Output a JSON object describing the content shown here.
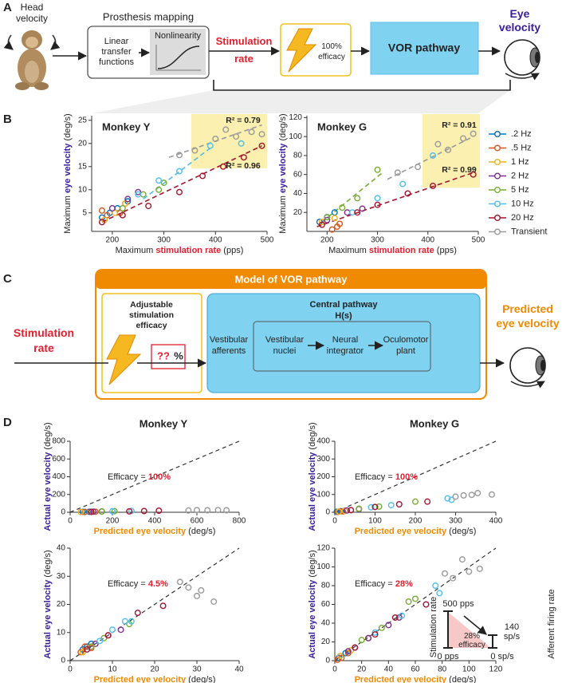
{
  "panel_labels": {
    "a": "A",
    "b": "B",
    "c": "C",
    "d": "D"
  },
  "panel_a": {
    "head_velocity": [
      "Head",
      "velocity"
    ],
    "prosthesis_mapping": "Prosthesis mapping",
    "linear": [
      "Linear",
      "transfer",
      "functions"
    ],
    "nonlinearity": "Nonlinearity",
    "stimulation_rate": [
      "Stimulation",
      "rate"
    ],
    "efficacy": [
      "100%",
      "efficacy"
    ],
    "vor_pathway": "VOR pathway",
    "eye_velocity": [
      "Eye",
      "velocity"
    ]
  },
  "panel_c": {
    "title": "Model of VOR pathway",
    "adjustable": [
      "Adjustable",
      "stimulation",
      "efficacy"
    ],
    "unknown": "??",
    "percent": "%",
    "central": [
      "Central pathway",
      "H(s)"
    ],
    "afferents": [
      "Vestibular",
      "afferents"
    ],
    "nuclei": [
      "Vestibular",
      "nuclei"
    ],
    "integrator": [
      "Neural",
      "integrator"
    ],
    "plant": [
      "Oculomotor",
      "plant"
    ],
    "stimulation_rate": [
      "Stimulation",
      "rate"
    ],
    "predicted": [
      "Predicted",
      "eye velocity"
    ]
  },
  "panel_d": {
    "inset": {
      "top_left": "500 pps",
      "bottom_left": "0 pps",
      "top_right": [
        "140",
        "sp/s"
      ],
      "bottom_right": "0 sp/s",
      "efficacy": [
        "28%",
        "efficacy"
      ],
      "left_axis": "Stimulation rate",
      "right_axis": "Afferent firing rate"
    }
  },
  "chart_data": [
    {
      "type": "scatter",
      "title": "Monkey Y",
      "xlabel": [
        "Maximum ",
        "stimulation rate",
        " (pps)"
      ],
      "xlabel_color": "#e0202e",
      "ylabel": [
        "Maximum ",
        "eye velocity",
        " (deg/s)"
      ],
      "ylabel_color": "#3a1d9a",
      "xlim": [
        160,
        500
      ],
      "xticks": [
        200,
        300,
        400,
        500
      ],
      "ylim": [
        1,
        26
      ],
      "yticks": [
        5,
        10,
        15,
        20,
        25
      ],
      "series": [
        {
          "color": "#0072bd",
          "x": [
            180,
            195,
            210,
            230
          ],
          "values": [
            4,
            5,
            6,
            7.5
          ]
        },
        {
          "color": "#d95319",
          "x": [
            180,
            190,
            215,
            225
          ],
          "values": [
            5.5,
            4.5,
            5,
            7
          ]
        },
        {
          "color": "#edb120",
          "x": [
            185,
            205,
            225
          ],
          "values": [
            3.5,
            5,
            7
          ]
        },
        {
          "color": "#7e2f8e",
          "x": [
            200,
            230,
            250
          ],
          "values": [
            6,
            8,
            9.5
          ]
        },
        {
          "color": "#77ac30",
          "x": [
            220,
            260,
            290,
            300
          ],
          "values": [
            6,
            9,
            10,
            11.5
          ]
        },
        {
          "color": "#4dbeee",
          "x": [
            250,
            290,
            330,
            390,
            450
          ],
          "values": [
            9,
            12,
            14,
            19.5,
            20
          ]
        },
        {
          "color": "#a2142f",
          "x": [
            180,
            220,
            270,
            330,
            375,
            415,
            455,
            490
          ],
          "values": [
            3,
            4.5,
            6.5,
            9.5,
            13,
            15,
            17,
            19.5
          ]
        },
        {
          "color": "#999999",
          "x": [
            330,
            360,
            400,
            420,
            440,
            470,
            490
          ],
          "values": [
            17.5,
            18.5,
            21,
            23,
            21.5,
            22.5,
            22
          ]
        }
      ],
      "fits": [
        {
          "color": "#999999",
          "x": [
            310,
            490
          ],
          "values": [
            17,
            24
          ]
        },
        {
          "color": "#4dbeee",
          "x": [
            260,
            390
          ],
          "values": [
            8,
            19
          ]
        },
        {
          "color": "#a2142f",
          "x": [
            180,
            490
          ],
          "values": [
            3,
            19.5
          ]
        }
      ],
      "annotations": [
        "R² = 0.79",
        "R² = 0.96"
      ]
    },
    {
      "type": "scatter",
      "title": "Monkey G",
      "xlabel": [
        "Maximum ",
        "stimulation rate",
        " (pps)"
      ],
      "xlabel_color": "#e0202e",
      "ylabel": [
        "Maximum ",
        "eye velocity",
        " (deg/s)"
      ],
      "ylabel_color": "#3a1d9a",
      "xlim": [
        160,
        500
      ],
      "xticks": [
        200,
        300,
        400,
        500
      ],
      "ylim": [
        0,
        122
      ],
      "yticks": [
        20,
        40,
        60,
        80,
        100,
        120
      ],
      "legend": "right",
      "series": [
        {
          "name": ".2 Hz",
          "color": "#0072bd",
          "x": [
            185,
            200,
            215
          ],
          "values": [
            10,
            15,
            20
          ]
        },
        {
          "name": ".5 Hz",
          "color": "#d95319",
          "x": [
            210,
            220,
            225
          ],
          "values": [
            2,
            5,
            8
          ]
        },
        {
          "name": "1 Hz",
          "color": "#edb120",
          "x": [
            190,
            215
          ],
          "values": [
            10,
            14
          ]
        },
        {
          "name": "2 Hz",
          "color": "#7e2f8e",
          "x": [
            200,
            240,
            270
          ],
          "values": [
            12,
            20,
            24
          ]
        },
        {
          "name": "5 Hz",
          "color": "#77ac30",
          "x": [
            200,
            230,
            260,
            300
          ],
          "values": [
            15,
            25,
            35,
            65
          ]
        },
        {
          "name": "10 Hz",
          "color": "#4dbeee",
          "x": [
            250,
            300,
            350,
            410
          ],
          "values": [
            20,
            35,
            50,
            80
          ]
        },
        {
          "name": "20 Hz",
          "color": "#a2142f",
          "x": [
            190,
            260,
            300,
            360,
            410,
            490
          ],
          "values": [
            7,
            20,
            28,
            40,
            48,
            60
          ]
        },
        {
          "name": "Transient",
          "color": "#999999",
          "x": [
            340,
            380,
            420,
            440,
            470,
            490
          ],
          "values": [
            62,
            68,
            92,
            86,
            98,
            103
          ]
        }
      ],
      "fits": [
        {
          "color": "#999999",
          "x": [
            320,
            490
          ],
          "values": [
            55,
            100
          ]
        },
        {
          "color": "#77ac30",
          "x": [
            190,
            310
          ],
          "values": [
            10,
            62
          ]
        },
        {
          "color": "#a2142f",
          "x": [
            180,
            490
          ],
          "values": [
            5,
            62
          ]
        }
      ],
      "annotations": [
        "R² = 0.91",
        "R² = 0.99"
      ]
    },
    {
      "type": "scatter",
      "title": "Monkey Y",
      "xlabel": [
        "",
        "Predicted eye velocity",
        " (deg/s)"
      ],
      "xlabel_color": "#f08a00",
      "ylabel": [
        "",
        "Actual eye velocity",
        " (deg/s)"
      ],
      "ylabel_color": "#3a1d9a",
      "xlim": [
        0,
        800
      ],
      "xticks": [
        0,
        200,
        400,
        600,
        800
      ],
      "ylim": [
        0,
        800
      ],
      "yticks": [
        0,
        200,
        400,
        600,
        800
      ],
      "diagonal": true,
      "annotation": [
        "Efficacy = ",
        "100%"
      ],
      "series": [
        {
          "color": "#0072bd",
          "x": [
            60,
            90
          ],
          "values": [
            5,
            6
          ]
        },
        {
          "color": "#d95319",
          "x": [
            70,
            120
          ],
          "values": [
            4,
            6
          ]
        },
        {
          "color": "#edb120",
          "x": [
            50,
            100
          ],
          "values": [
            3,
            5
          ]
        },
        {
          "color": "#7e2f8e",
          "x": [
            110,
            150
          ],
          "values": [
            7,
            9
          ]
        },
        {
          "color": "#77ac30",
          "x": [
            150,
            210
          ],
          "values": [
            8,
            12
          ]
        },
        {
          "color": "#4dbeee",
          "x": [
            200,
            290
          ],
          "values": [
            12,
            15
          ]
        },
        {
          "color": "#a2142f",
          "x": [
            100,
            280,
            350,
            420
          ],
          "values": [
            4,
            10,
            14,
            18
          ]
        },
        {
          "color": "#999999",
          "x": [
            560,
            600,
            650,
            700,
            740
          ],
          "values": [
            20,
            24,
            22,
            25,
            22
          ]
        }
      ]
    },
    {
      "type": "scatter",
      "title": "Monkey G",
      "xlabel": [
        "",
        "Predicted eye velocity",
        " (deg/s)"
      ],
      "xlabel_color": "#f08a00",
      "ylabel": [
        "",
        "Actual eye velocity",
        " (deg/s)"
      ],
      "ylabel_color": "#3a1d9a",
      "xlim": [
        0,
        400
      ],
      "xticks": [
        0,
        100,
        200,
        300,
        400
      ],
      "ylim": [
        0,
        400
      ],
      "yticks": [
        0,
        100,
        200,
        300,
        400
      ],
      "diagonal": true,
      "annotation": [
        "Efficacy = ",
        "100%"
      ],
      "series": [
        {
          "color": "#0072bd",
          "x": [
            5,
            15
          ],
          "values": [
            3,
            6
          ]
        },
        {
          "color": "#d95319",
          "x": [
            8,
            20
          ],
          "values": [
            2,
            5
          ]
        },
        {
          "color": "#edb120",
          "x": [
            10,
            25
          ],
          "values": [
            4,
            8
          ]
        },
        {
          "color": "#7e2f8e",
          "x": [
            30,
            60
          ],
          "values": [
            10,
            18
          ]
        },
        {
          "color": "#77ac30",
          "x": [
            60,
            110,
            200
          ],
          "values": [
            20,
            32,
            60
          ]
        },
        {
          "color": "#4dbeee",
          "x": [
            90,
            140,
            280,
            290
          ],
          "values": [
            28,
            40,
            78,
            70
          ]
        },
        {
          "color": "#a2142f",
          "x": [
            40,
            100,
            160,
            230
          ],
          "values": [
            12,
            30,
            45,
            60
          ]
        },
        {
          "color": "#999999",
          "x": [
            300,
            320,
            340,
            355,
            390
          ],
          "values": [
            88,
            95,
            98,
            108,
            100
          ]
        }
      ]
    },
    {
      "type": "scatter",
      "xlabel": [
        "",
        "Predicted eye velocity",
        " (deg/s)"
      ],
      "xlabel_color": "#f08a00",
      "ylabel": [
        "",
        "Actual eye velocity",
        " (deg/s)"
      ],
      "ylabel_color": "#3a1d9a",
      "xlim": [
        0,
        40
      ],
      "xticks": [
        0,
        10,
        20,
        30,
        40
      ],
      "ylim": [
        0,
        40
      ],
      "yticks": [
        0,
        10,
        20,
        30,
        40
      ],
      "diagonal": true,
      "annotation": [
        "Efficacy = ",
        "4.5%"
      ],
      "series": [
        {
          "color": "#0072bd",
          "x": [
            3,
            4,
            5
          ],
          "values": [
            4,
            5,
            6
          ]
        },
        {
          "color": "#d95319",
          "x": [
            2.5,
            3.5,
            5
          ],
          "values": [
            3,
            5,
            4.5
          ]
        },
        {
          "color": "#edb120",
          "x": [
            3,
            5,
            6
          ],
          "values": [
            3,
            5,
            6
          ]
        },
        {
          "color": "#7e2f8e",
          "x": [
            6,
            9,
            12
          ],
          "values": [
            6,
            9,
            11
          ]
        },
        {
          "color": "#77ac30",
          "x": [
            5,
            8,
            14
          ],
          "values": [
            5,
            8,
            13
          ]
        },
        {
          "color": "#4dbeee",
          "x": [
            7,
            10,
            13,
            14.5
          ],
          "values": [
            7,
            11,
            14,
            14
          ]
        },
        {
          "color": "#a2142f",
          "x": [
            4,
            9,
            16,
            22
          ],
          "values": [
            4,
            9,
            17,
            19.5
          ]
        },
        {
          "color": "#999999",
          "x": [
            26,
            28,
            30,
            31,
            34
          ],
          "values": [
            28,
            26,
            23,
            25,
            21
          ]
        }
      ]
    },
    {
      "type": "scatter",
      "xlabel": [
        "",
        "Predicted eye velocity",
        " (deg/s)"
      ],
      "xlabel_color": "#f08a00",
      "ylabel": [
        "",
        "Actual eye velocity",
        " (deg/s)"
      ],
      "ylabel_color": "#3a1d9a",
      "xlim": [
        0,
        120
      ],
      "xticks": [
        0,
        20,
        40,
        60,
        80,
        100,
        120
      ],
      "ylim": [
        0,
        120
      ],
      "yticks": [
        0,
        20,
        40,
        60,
        80,
        100,
        120
      ],
      "diagonal": true,
      "annotation": [
        "Efficacy = ",
        "28%"
      ],
      "series": [
        {
          "color": "#0072bd",
          "x": [
            3,
            8,
            15
          ],
          "values": [
            3,
            8,
            14
          ]
        },
        {
          "color": "#d95319",
          "x": [
            2,
            5,
            10
          ],
          "values": [
            1,
            3,
            8
          ]
        },
        {
          "color": "#edb120",
          "x": [
            4,
            12,
            25
          ],
          "values": [
            5,
            11,
            24
          ]
        },
        {
          "color": "#7e2f8e",
          "x": [
            10,
            25,
            40,
            48
          ],
          "values": [
            10,
            24,
            38,
            46
          ]
        },
        {
          "color": "#77ac30",
          "x": [
            20,
            35,
            55,
            60
          ],
          "values": [
            22,
            35,
            63,
            66
          ]
        },
        {
          "color": "#4dbeee",
          "x": [
            30,
            50,
            75,
            78
          ],
          "values": [
            30,
            48,
            80,
            72
          ]
        },
        {
          "color": "#a2142f",
          "x": [
            15,
            30,
            45,
            68
          ],
          "values": [
            14,
            28,
            46,
            60
          ]
        },
        {
          "color": "#999999",
          "x": [
            82,
            88,
            95,
            100,
            108
          ],
          "values": [
            93,
            88,
            108,
            95,
            98
          ]
        }
      ]
    }
  ]
}
